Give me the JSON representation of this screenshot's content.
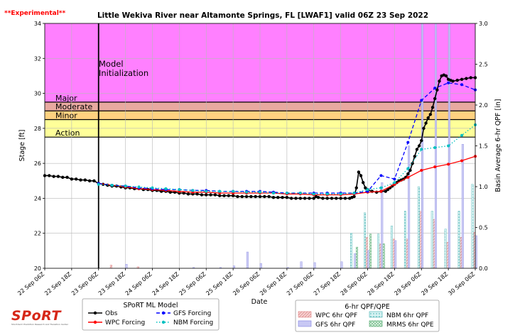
{
  "experimental_label": "**Experimental**",
  "logo_text": "SPoRT",
  "logo_tagline": "Short-term Prediction Research and Transition Center",
  "chart_data": {
    "type": "line",
    "title": "Little Wekiva River near Altamonte Springs, FL [LWAF1] valid  06Z 23 Sep 2022",
    "xlabel": "Date",
    "ylabel": "Stage [ft]",
    "y2label": "Basin Average 6-hr QPF [in]",
    "ylim": [
      20,
      34
    ],
    "y2lim": [
      0,
      3
    ],
    "yticks": [
      "20",
      "22",
      "24",
      "26",
      "28",
      "30",
      "32",
      "34"
    ],
    "y2ticks": [
      "0.0",
      "0.5",
      "1.0",
      "1.5",
      "2.0",
      "2.5",
      "3.0"
    ],
    "xlim_hours": [
      0,
      192
    ],
    "xticks": [
      {
        "h": 0,
        "label": "22 Sep 06Z"
      },
      {
        "h": 12,
        "label": "22 Sep 18Z"
      },
      {
        "h": 24,
        "label": "23 Sep 06Z"
      },
      {
        "h": 36,
        "label": "23 Sep 18Z"
      },
      {
        "h": 48,
        "label": "24 Sep 06Z"
      },
      {
        "h": 60,
        "label": "24 Sep 18Z"
      },
      {
        "h": 72,
        "label": "25 Sep 06Z"
      },
      {
        "h": 84,
        "label": "25 Sep 18Z"
      },
      {
        "h": 96,
        "label": "26 Sep 06Z"
      },
      {
        "h": 108,
        "label": "26 Sep 18Z"
      },
      {
        "h": 120,
        "label": "27 Sep 06Z"
      },
      {
        "h": 132,
        "label": "27 Sep 18Z"
      },
      {
        "h": 144,
        "label": "28 Sep 06Z"
      },
      {
        "h": 156,
        "label": "28 Sep 18Z"
      },
      {
        "h": 168,
        "label": "29 Sep 06Z"
      },
      {
        "h": 180,
        "label": "29 Sep 18Z"
      },
      {
        "h": 192,
        "label": "30 Sep 06Z"
      }
    ],
    "grid": true,
    "flood_categories": [
      {
        "name": "Action",
        "from": 27.5,
        "to": 28.5,
        "color": "#ffff99"
      },
      {
        "name": "Minor",
        "from": 28.5,
        "to": 29.0,
        "color": "#ffd280"
      },
      {
        "name": "Moderate",
        "from": 29.0,
        "to": 29.5,
        "color": "#e8a9a0"
      },
      {
        "name": "Major",
        "from": 29.5,
        "to": 34.0,
        "color": "#ff80ff"
      }
    ],
    "model_init": {
      "h": 24,
      "label_line1": "Model",
      "label_line2": "Initialization"
    },
    "stage_series": [
      {
        "name": "Obs",
        "color": "#000000",
        "style": "solid-dots",
        "points": [
          [
            0,
            25.3
          ],
          [
            2,
            25.3
          ],
          [
            4,
            25.25
          ],
          [
            6,
            25.25
          ],
          [
            8,
            25.2
          ],
          [
            10,
            25.2
          ],
          [
            12,
            25.1
          ],
          [
            14,
            25.1
          ],
          [
            16,
            25.05
          ],
          [
            18,
            25.05
          ],
          [
            20,
            25.0
          ],
          [
            22,
            25.0
          ],
          [
            24,
            24.85
          ],
          [
            26,
            24.8
          ],
          [
            28,
            24.75
          ],
          [
            30,
            24.7
          ],
          [
            32,
            24.7
          ],
          [
            34,
            24.65
          ],
          [
            36,
            24.6
          ],
          [
            38,
            24.6
          ],
          [
            40,
            24.55
          ],
          [
            42,
            24.55
          ],
          [
            44,
            24.5
          ],
          [
            46,
            24.5
          ],
          [
            48,
            24.45
          ],
          [
            50,
            24.45
          ],
          [
            52,
            24.4
          ],
          [
            54,
            24.4
          ],
          [
            56,
            24.35
          ],
          [
            58,
            24.35
          ],
          [
            60,
            24.3
          ],
          [
            62,
            24.3
          ],
          [
            64,
            24.25
          ],
          [
            66,
            24.25
          ],
          [
            68,
            24.25
          ],
          [
            70,
            24.2
          ],
          [
            72,
            24.2
          ],
          [
            74,
            24.2
          ],
          [
            76,
            24.2
          ],
          [
            78,
            24.15
          ],
          [
            80,
            24.15
          ],
          [
            82,
            24.15
          ],
          [
            84,
            24.15
          ],
          [
            86,
            24.1
          ],
          [
            88,
            24.1
          ],
          [
            90,
            24.1
          ],
          [
            92,
            24.1
          ],
          [
            94,
            24.1
          ],
          [
            96,
            24.1
          ],
          [
            98,
            24.1
          ],
          [
            100,
            24.1
          ],
          [
            102,
            24.05
          ],
          [
            104,
            24.05
          ],
          [
            106,
            24.05
          ],
          [
            108,
            24.05
          ],
          [
            110,
            24.0
          ],
          [
            112,
            24.0
          ],
          [
            114,
            24.0
          ],
          [
            116,
            24.0
          ],
          [
            118,
            24.0
          ],
          [
            120,
            24.0
          ],
          [
            121,
            24.1
          ],
          [
            122,
            24.05
          ],
          [
            124,
            24.0
          ],
          [
            126,
            24.0
          ],
          [
            128,
            24.0
          ],
          [
            130,
            24.0
          ],
          [
            132,
            24.0
          ],
          [
            134,
            24.0
          ],
          [
            136,
            24.0
          ],
          [
            137,
            24.05
          ],
          [
            138,
            24.1
          ],
          [
            139,
            24.6
          ],
          [
            140,
            25.5
          ],
          [
            141,
            25.3
          ],
          [
            142,
            24.9
          ],
          [
            143,
            24.6
          ],
          [
            144,
            24.5
          ],
          [
            146,
            24.4
          ],
          [
            148,
            24.35
          ],
          [
            150,
            24.4
          ],
          [
            152,
            24.4
          ],
          [
            153,
            24.5
          ],
          [
            154,
            24.6
          ],
          [
            155,
            24.7
          ],
          [
            156,
            24.8
          ],
          [
            157,
            24.9
          ],
          [
            158,
            25.0
          ],
          [
            159,
            25.05
          ],
          [
            160,
            25.1
          ],
          [
            161,
            25.2
          ],
          [
            162,
            25.4
          ],
          [
            163,
            25.6
          ],
          [
            164,
            26.0
          ],
          [
            165,
            26.4
          ],
          [
            166,
            26.8
          ],
          [
            167,
            27.0
          ],
          [
            168,
            27.3
          ],
          [
            169,
            28.0
          ],
          [
            170,
            28.3
          ],
          [
            171,
            28.6
          ],
          [
            172,
            28.8
          ],
          [
            173,
            29.2
          ],
          [
            174,
            29.7
          ],
          [
            175,
            30.2
          ],
          [
            176,
            30.7
          ],
          [
            177,
            31.0
          ],
          [
            178,
            31.05
          ],
          [
            179,
            31.0
          ],
          [
            180,
            30.8
          ],
          [
            181,
            30.75
          ],
          [
            182,
            30.7
          ],
          [
            184,
            30.75
          ],
          [
            186,
            30.8
          ],
          [
            188,
            30.85
          ],
          [
            190,
            30.9
          ],
          [
            192,
            30.9
          ]
        ]
      },
      {
        "name": "WPC Forcing",
        "color": "#ff0000",
        "style": "solid-dots",
        "points": [
          [
            24,
            24.85
          ],
          [
            30,
            24.75
          ],
          [
            36,
            24.65
          ],
          [
            42,
            24.55
          ],
          [
            48,
            24.5
          ],
          [
            54,
            24.45
          ],
          [
            60,
            24.4
          ],
          [
            66,
            24.35
          ],
          [
            72,
            24.35
          ],
          [
            78,
            24.3
          ],
          [
            84,
            24.3
          ],
          [
            90,
            24.3
          ],
          [
            96,
            24.3
          ],
          [
            102,
            24.3
          ],
          [
            108,
            24.25
          ],
          [
            114,
            24.25
          ],
          [
            120,
            24.2
          ],
          [
            126,
            24.2
          ],
          [
            132,
            24.2
          ],
          [
            138,
            24.25
          ],
          [
            144,
            24.35
          ],
          [
            150,
            24.4
          ],
          [
            156,
            24.8
          ],
          [
            162,
            25.2
          ],
          [
            168,
            25.6
          ],
          [
            174,
            25.8
          ],
          [
            180,
            25.95
          ],
          [
            186,
            26.15
          ],
          [
            192,
            26.4
          ]
        ]
      },
      {
        "name": "GFS Forcing",
        "color": "#0000ff",
        "style": "dashed-dots",
        "points": [
          [
            24,
            24.85
          ],
          [
            30,
            24.75
          ],
          [
            36,
            24.7
          ],
          [
            42,
            24.6
          ],
          [
            48,
            24.55
          ],
          [
            54,
            24.5
          ],
          [
            60,
            24.5
          ],
          [
            66,
            24.45
          ],
          [
            72,
            24.45
          ],
          [
            78,
            24.4
          ],
          [
            84,
            24.4
          ],
          [
            90,
            24.4
          ],
          [
            96,
            24.4
          ],
          [
            102,
            24.35
          ],
          [
            108,
            24.3
          ],
          [
            114,
            24.3
          ],
          [
            120,
            24.3
          ],
          [
            126,
            24.3
          ],
          [
            132,
            24.3
          ],
          [
            138,
            24.3
          ],
          [
            144,
            24.4
          ],
          [
            150,
            25.3
          ],
          [
            156,
            25.1
          ],
          [
            162,
            27.2
          ],
          [
            168,
            29.6
          ],
          [
            174,
            30.3
          ],
          [
            180,
            30.6
          ],
          [
            186,
            30.5
          ],
          [
            192,
            30.2
          ]
        ]
      },
      {
        "name": "NBM Forcing",
        "color": "#00c0c0",
        "style": "dotted-dots",
        "points": [
          [
            24,
            24.8
          ],
          [
            30,
            24.75
          ],
          [
            36,
            24.7
          ],
          [
            42,
            24.65
          ],
          [
            48,
            24.6
          ],
          [
            54,
            24.55
          ],
          [
            60,
            24.5
          ],
          [
            66,
            24.45
          ],
          [
            72,
            24.4
          ],
          [
            78,
            24.4
          ],
          [
            84,
            24.4
          ],
          [
            90,
            24.35
          ],
          [
            96,
            24.35
          ],
          [
            102,
            24.3
          ],
          [
            108,
            24.3
          ],
          [
            114,
            24.3
          ],
          [
            120,
            24.25
          ],
          [
            126,
            24.25
          ],
          [
            132,
            24.25
          ],
          [
            138,
            24.3
          ],
          [
            144,
            24.5
          ],
          [
            150,
            24.6
          ],
          [
            156,
            24.9
          ],
          [
            162,
            25.7
          ],
          [
            168,
            26.8
          ],
          [
            174,
            26.9
          ],
          [
            180,
            27.0
          ],
          [
            186,
            27.6
          ],
          [
            192,
            28.2
          ]
        ]
      }
    ],
    "qpf_series": [
      {
        "name": "WPC 6hr QPF",
        "color": "#e08080",
        "fill": "#f4c8c8",
        "values": [
          [
            30,
            0.04
          ],
          [
            42,
            0.02
          ],
          [
            144,
            0.38
          ],
          [
            150,
            0.3
          ],
          [
            156,
            0.36
          ],
          [
            162,
            0.36
          ],
          [
            168,
            0.7
          ],
          [
            174,
            0.6
          ],
          [
            180,
            0.32
          ],
          [
            186,
            0.38
          ],
          [
            192,
            0.44
          ]
        ]
      },
      {
        "name": "GFS 6hr QPF",
        "color": "#8080e0",
        "fill": "#c8c8f4",
        "values": [
          [
            36,
            0.05
          ],
          [
            66,
            0.01
          ],
          [
            78,
            0.01
          ],
          [
            84,
            0.03
          ],
          [
            90,
            0.2
          ],
          [
            96,
            0.06
          ],
          [
            108,
            0.01
          ],
          [
            114,
            0.08
          ],
          [
            120,
            0.07
          ],
          [
            132,
            0.08
          ],
          [
            138,
            0.18
          ],
          [
            144,
            0.22
          ],
          [
            150,
            1.05
          ],
          [
            156,
            0.34
          ],
          [
            162,
            1.5
          ],
          [
            168,
            3.2
          ],
          [
            174,
            3.1
          ],
          [
            180,
            3.2
          ],
          [
            186,
            1.52
          ],
          [
            192,
            0.4
          ]
        ]
      },
      {
        "name": "NBM 6hr QPF",
        "color": "#40b0b0",
        "fill": "#c8ecec",
        "values": [
          [
            138,
            0.43
          ],
          [
            144,
            0.68
          ],
          [
            150,
            0.42
          ],
          [
            156,
            0.52
          ],
          [
            162,
            0.7
          ],
          [
            168,
            1.0
          ],
          [
            174,
            0.7
          ],
          [
            180,
            0.48
          ],
          [
            186,
            0.7
          ],
          [
            192,
            1.03
          ]
        ]
      },
      {
        "name": "MRMS 6hr QPE",
        "color": "#40a060",
        "fill": "#c8e8d0",
        "values": [
          [
            138,
            0.26
          ],
          [
            144,
            0.42
          ],
          [
            150,
            0.3
          ]
        ]
      }
    ],
    "legend_stage_title": "SPoRT ML Model",
    "legend_qpf_title": "6-hr QPF/QPE"
  }
}
